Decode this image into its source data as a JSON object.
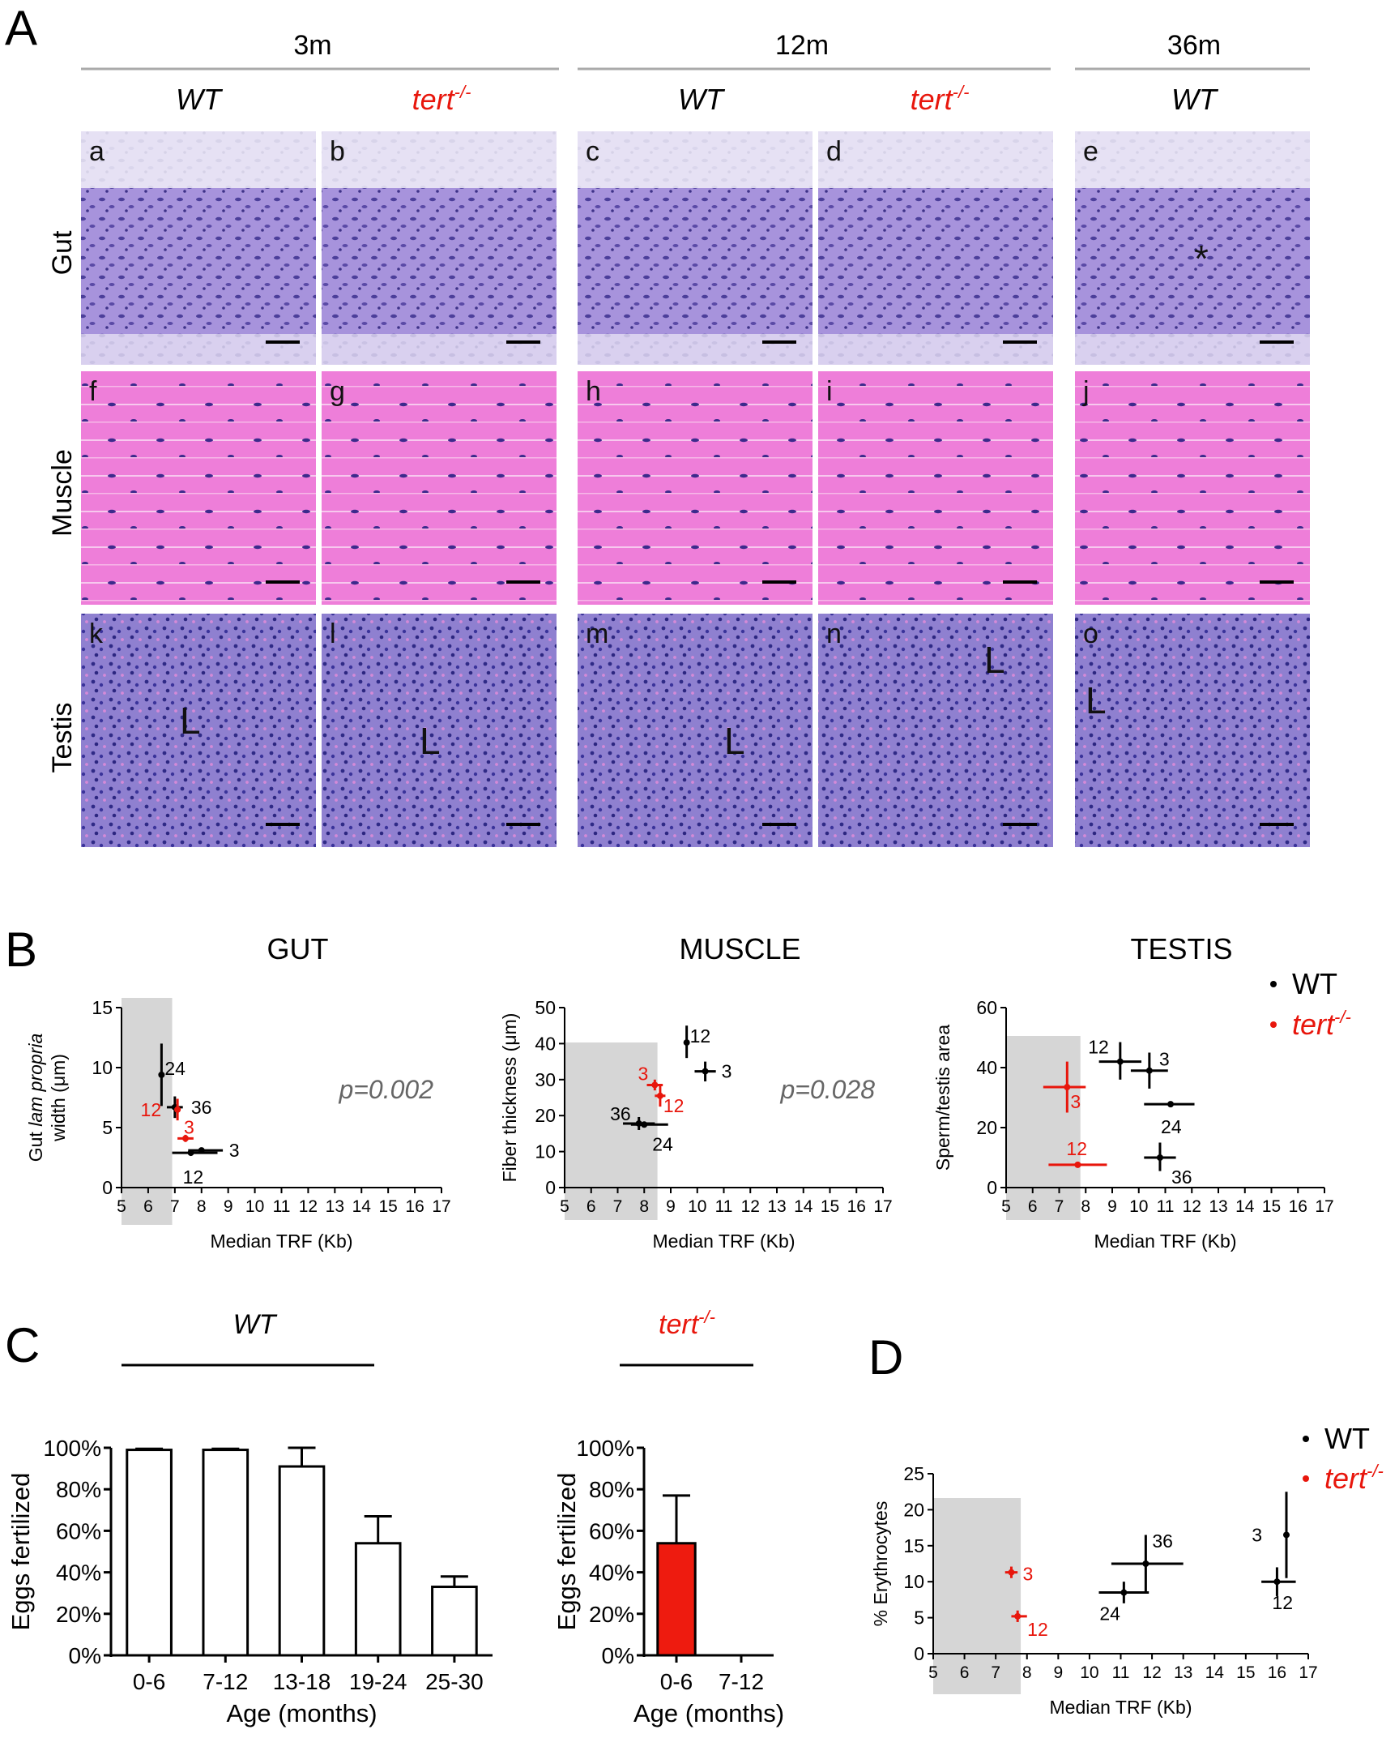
{
  "panel_a": {
    "letter": "A",
    "groups": [
      "3m",
      "12m",
      "36m"
    ],
    "wt_label": "WT",
    "tert_label": "tert",
    "tert_sup": "-/-",
    "rows": [
      "Gut",
      "Muscle",
      "Testis"
    ],
    "tiles": [
      [
        "a",
        "b",
        "c",
        "d",
        "e"
      ],
      [
        "f",
        "g",
        "h",
        "i",
        "j"
      ],
      [
        "k",
        "l",
        "m",
        "n",
        "o"
      ]
    ],
    "tile_marks": [
      {
        "tile": "e",
        "text": "*"
      },
      {
        "tile": "k",
        "text": "L"
      },
      {
        "tile": "l",
        "text": "L"
      },
      {
        "tile": "m",
        "text": "L"
      },
      {
        "tile": "n",
        "text": "L"
      },
      {
        "tile": "o",
        "text": "L"
      }
    ],
    "colors": {
      "gut": "#9a86d4",
      "muscle": "#ec7ad8",
      "testis": "#6c66c2"
    }
  },
  "panel_b": {
    "letter": "B"
  },
  "panel_c": {
    "letter": "C",
    "wt_heading": "WT",
    "tert_heading": "tert",
    "tert_sup": "-/-"
  },
  "panel_d": {
    "letter": "D"
  },
  "legend": {
    "wt": "WT",
    "tert": "tert",
    "tert_sup": "-/-",
    "wt_color": "#000000",
    "tert_color": "#e8160c"
  },
  "chart_data": [
    {
      "id": "gut",
      "type": "scatter",
      "title": "GUT",
      "xlabel": "Median TRF (Kb)",
      "ylabel": "Gut lam propria width (μm)",
      "xlim": [
        5,
        17
      ],
      "ylim": [
        0,
        15
      ],
      "annotation": "p=0.002",
      "shaded_x": [
        5,
        6.9
      ],
      "points": [
        {
          "label": "24",
          "group": "WT",
          "x": 6.5,
          "y": 9.4,
          "xerr": [
            6.5,
            6.5
          ],
          "yerr": [
            6.8,
            12.0
          ]
        },
        {
          "label": "36",
          "group": "WT",
          "x": 7.0,
          "y": 6.7,
          "xerr": [
            6.7,
            7.3
          ],
          "yerr": [
            5.8,
            7.6
          ]
        },
        {
          "label": "3",
          "group": "WT",
          "x": 8.0,
          "y": 3.1,
          "xerr": [
            7.5,
            8.8
          ],
          "yerr": [
            3.1,
            3.1
          ]
        },
        {
          "label": "12",
          "group": "WT",
          "x": 7.6,
          "y": 2.9,
          "xerr": [
            6.9,
            8.6
          ],
          "yerr": [
            2.9,
            2.9
          ]
        },
        {
          "label": "3",
          "group": "tert",
          "x": 7.4,
          "y": 4.1,
          "xerr": [
            7.1,
            7.7
          ],
          "yerr": [
            3.8,
            4.4
          ]
        },
        {
          "label": "12",
          "group": "tert",
          "x": 7.1,
          "y": 6.5,
          "xerr": [
            7.1,
            7.1
          ],
          "yerr": [
            5.6,
            7.4
          ]
        }
      ]
    },
    {
      "id": "muscle",
      "type": "scatter",
      "title": "MUSCLE",
      "xlabel": "Median TRF (Kb)",
      "ylabel": "Fiber thickness (μm)",
      "xlim": [
        5,
        17
      ],
      "ylim": [
        0,
        50
      ],
      "annotation": "p=0.028",
      "shaded_x": [
        5,
        8.5
      ],
      "points": [
        {
          "label": "12",
          "group": "WT",
          "x": 9.6,
          "y": 40.3,
          "xerr": [
            9.6,
            9.6
          ],
          "yerr": [
            36.0,
            45.0
          ]
        },
        {
          "label": "3",
          "group": "WT",
          "x": 10.3,
          "y": 32.3,
          "xerr": [
            9.9,
            10.7
          ],
          "yerr": [
            29.5,
            35.0
          ]
        },
        {
          "label": "36",
          "group": "WT",
          "x": 7.8,
          "y": 17.8,
          "xerr": [
            7.2,
            8.4
          ],
          "yerr": [
            16.0,
            19.6
          ]
        },
        {
          "label": "24",
          "group": "WT",
          "x": 8.0,
          "y": 17.5,
          "xerr": [
            7.5,
            8.9
          ],
          "yerr": [
            17.5,
            17.5
          ]
        },
        {
          "label": "3",
          "group": "tert",
          "x": 8.4,
          "y": 28.5,
          "xerr": [
            8.1,
            8.7
          ],
          "yerr": [
            27.0,
            30.0
          ]
        },
        {
          "label": "12",
          "group": "tert",
          "x": 8.6,
          "y": 25.5,
          "xerr": [
            8.4,
            8.8
          ],
          "yerr": [
            22.5,
            28.5
          ]
        }
      ]
    },
    {
      "id": "testis",
      "type": "scatter",
      "title": "TESTIS",
      "xlabel": "Median TRF (Kb)",
      "ylabel": "Sperm/testis area",
      "xlim": [
        5,
        17
      ],
      "ylim": [
        0,
        60
      ],
      "annotation": "",
      "shaded_x": [
        5,
        7.8
      ],
      "points": [
        {
          "label": "12",
          "group": "WT",
          "x": 9.3,
          "y": 42.0,
          "xerr": [
            8.5,
            10.1
          ],
          "yerr": [
            36.0,
            48.5
          ]
        },
        {
          "label": "3",
          "group": "WT",
          "x": 10.4,
          "y": 39.0,
          "xerr": [
            9.7,
            11.1
          ],
          "yerr": [
            33.0,
            45.0
          ]
        },
        {
          "label": "24",
          "group": "WT",
          "x": 11.2,
          "y": 27.8,
          "xerr": [
            10.2,
            12.1
          ],
          "yerr": [
            27.8,
            27.8
          ]
        },
        {
          "label": "36",
          "group": "WT",
          "x": 10.8,
          "y": 10.0,
          "xerr": [
            10.2,
            11.4
          ],
          "yerr": [
            5.5,
            15.0
          ]
        },
        {
          "label": "3",
          "group": "tert",
          "x": 7.3,
          "y": 33.5,
          "xerr": [
            6.4,
            8.0
          ],
          "yerr": [
            25.0,
            42.0
          ]
        },
        {
          "label": "12",
          "group": "tert",
          "x": 7.7,
          "y": 7.6,
          "xerr": [
            6.6,
            8.8
          ],
          "yerr": [
            7.6,
            7.6
          ]
        }
      ]
    },
    {
      "id": "fert_wt",
      "type": "bar",
      "xlabel": "Age (months)",
      "ylabel": "Eggs fertilized",
      "categories": [
        "0-6",
        "7-12",
        "13-18",
        "19-24",
        "25-30"
      ],
      "values": [
        99,
        99,
        91,
        54,
        33
      ],
      "errors": [
        0.5,
        0.5,
        9,
        13,
        5
      ],
      "ylim": [
        0,
        100
      ],
      "yticks": [
        "0%",
        "20%",
        "40%",
        "60%",
        "80%",
        "100%"
      ],
      "color": "#ffffff"
    },
    {
      "id": "fert_tert",
      "type": "bar",
      "xlabel": "Age (months)",
      "ylabel": "Eggs fertilized",
      "categories": [
        "0-6",
        "7-12"
      ],
      "values": [
        54,
        0
      ],
      "errors": [
        23,
        0
      ],
      "ylim": [
        0,
        100
      ],
      "yticks": [
        "0%",
        "20%",
        "40%",
        "60%",
        "80%",
        "100%"
      ],
      "color": "#ee1b0f"
    },
    {
      "id": "erythro",
      "type": "scatter",
      "xlabel": "Median TRF (Kb)",
      "ylabel": "% Erythrocytes",
      "xlim": [
        5,
        17
      ],
      "ylim": [
        0,
        25
      ],
      "annotation": "",
      "shaded_x": [
        5,
        7.8
      ],
      "points": [
        {
          "label": "3",
          "group": "WT",
          "x": 16.3,
          "y": 16.5,
          "xerr": [
            16.3,
            16.3
          ],
          "yerr": [
            10.5,
            22.5
          ]
        },
        {
          "label": "12",
          "group": "WT",
          "x": 16.0,
          "y": 10.0,
          "xerr": [
            15.5,
            16.6
          ],
          "yerr": [
            8.0,
            12.0
          ]
        },
        {
          "label": "36",
          "group": "WT",
          "x": 11.8,
          "y": 12.5,
          "xerr": [
            10.7,
            13.0
          ],
          "yerr": [
            8.5,
            16.5
          ]
        },
        {
          "label": "24",
          "group": "WT",
          "x": 11.1,
          "y": 8.5,
          "xerr": [
            10.3,
            11.9
          ],
          "yerr": [
            7.0,
            10.0
          ]
        },
        {
          "label": "3",
          "group": "tert",
          "x": 7.5,
          "y": 11.3,
          "xerr": [
            7.3,
            7.7
          ],
          "yerr": [
            10.5,
            12.1
          ]
        },
        {
          "label": "12",
          "group": "tert",
          "x": 7.7,
          "y": 5.2,
          "xerr": [
            7.5,
            8.0
          ],
          "yerr": [
            4.4,
            6.0
          ]
        }
      ]
    }
  ]
}
